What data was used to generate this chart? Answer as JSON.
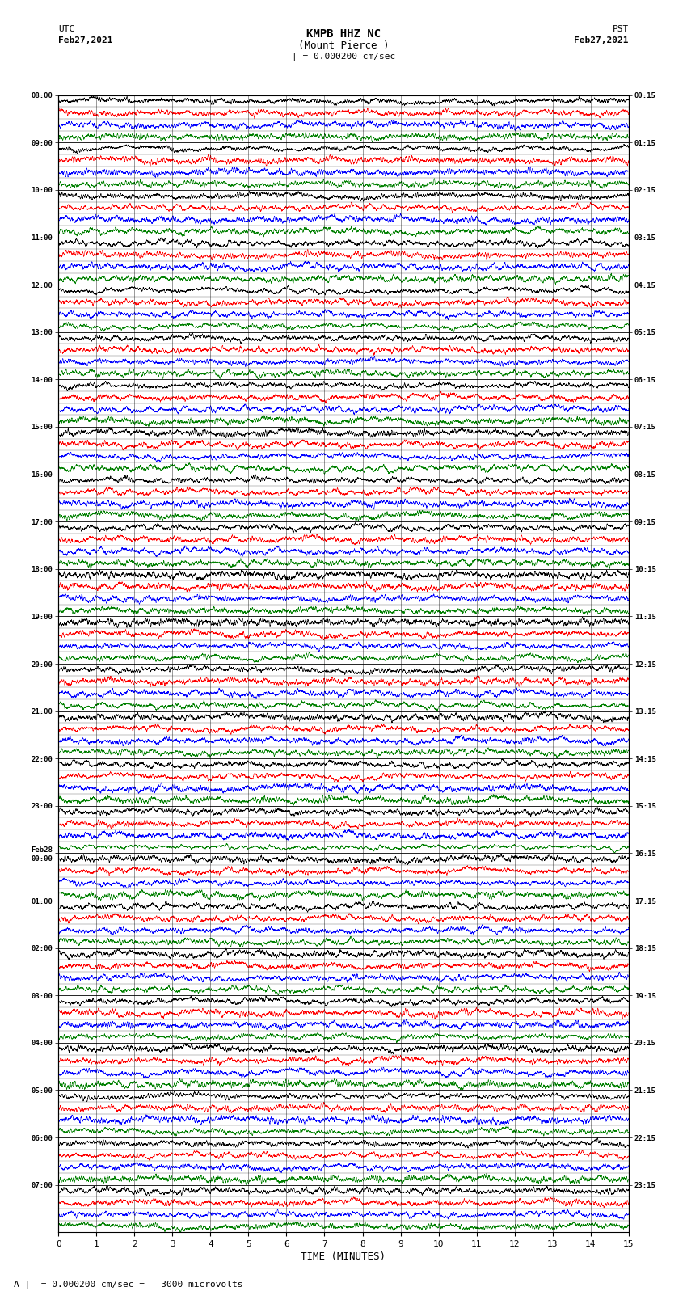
{
  "title_line1": "KMPB HHZ NC",
  "title_line2": "(Mount Pierce )",
  "scale_text": "| = 0.000200 cm/sec",
  "utc_label": "UTC",
  "utc_date": "Feb27,2021",
  "pst_label": "PST",
  "pst_date": "Feb27,2021",
  "xlabel": "TIME (MINUTES)",
  "footer_text": "A |  = 0.000200 cm/sec =   3000 microvolts",
  "left_times": [
    "08:00",
    "09:00",
    "10:00",
    "11:00",
    "12:00",
    "13:00",
    "14:00",
    "15:00",
    "16:00",
    "17:00",
    "18:00",
    "19:00",
    "20:00",
    "21:00",
    "22:00",
    "23:00",
    "Feb28\n00:00",
    "01:00",
    "02:00",
    "03:00",
    "04:00",
    "05:00",
    "06:00",
    "07:00"
  ],
  "right_times": [
    "00:15",
    "01:15",
    "02:15",
    "03:15",
    "04:15",
    "05:15",
    "06:15",
    "07:15",
    "08:15",
    "09:15",
    "10:15",
    "11:15",
    "12:15",
    "13:15",
    "14:15",
    "15:15",
    "16:15",
    "17:15",
    "18:15",
    "19:15",
    "20:15",
    "21:15",
    "22:15",
    "23:15"
  ],
  "num_rows": 24,
  "traces_per_row": 4,
  "x_min": 0,
  "x_max": 15,
  "x_ticks": [
    0,
    1,
    2,
    3,
    4,
    5,
    6,
    7,
    8,
    9,
    10,
    11,
    12,
    13,
    14,
    15
  ],
  "colors": [
    "black",
    "red",
    "blue",
    "green"
  ],
  "background_color": "white",
  "seed": 42,
  "fig_width": 8.5,
  "fig_height": 16.13,
  "dpi": 100
}
